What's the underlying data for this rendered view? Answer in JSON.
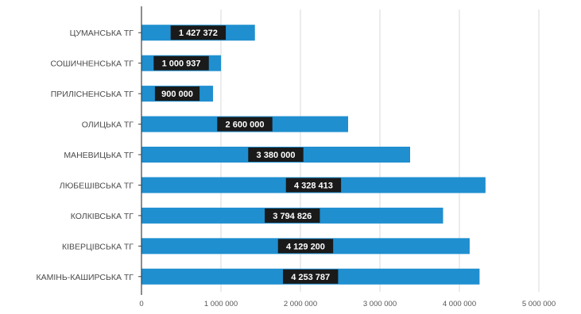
{
  "chart_data": {
    "type": "bar",
    "orientation": "horizontal",
    "categories": [
      "ЦУМАНСЬКА ТГ",
      "СОШИЧНЕНСЬКА ТГ",
      "ПРИЛІСНЕНСЬКА ТГ",
      "ОЛИЦЬКА ТГ",
      "МАНЕВИЦЬКА ТГ",
      "ЛЮБЕШІВСЬКА ТГ",
      "КОЛКІВСЬКА ТГ",
      "КІВЕРЦІВСЬКА ТГ",
      "КАМІНЬ-КАШИРСЬКА ТГ"
    ],
    "values": [
      1427372,
      1000937,
      900000,
      2600000,
      3380000,
      4328413,
      3794826,
      4129200,
      4253787
    ],
    "data_labels": [
      "1 427 372",
      "1 000 937",
      "900 000",
      "2 600 000",
      "3 380 000",
      "4 328 413",
      "3 794 826",
      "4 129 200",
      "4 253 787"
    ],
    "x_ticks": [
      0,
      1000000,
      2000000,
      3000000,
      4000000,
      5000000
    ],
    "x_tick_labels": [
      "0",
      "1 000 000",
      "2 000 000",
      "3 000 000",
      "4 000 000",
      "5 000 000"
    ],
    "xlim": [
      0,
      5000000
    ],
    "grid": "vertical",
    "colors": {
      "bar": "#1f8fd0",
      "data_label_bg": "#1a1a1a",
      "data_label_text": "#ffffff",
      "gridline": "#d9d9d9",
      "axis": "#404040"
    }
  }
}
